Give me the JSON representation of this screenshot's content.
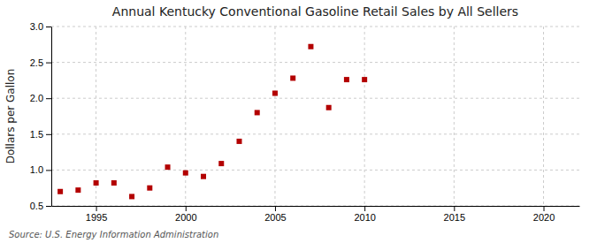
{
  "chart_data": {
    "type": "scatter",
    "title": "Annual Kentucky Conventional Gasoline Retail Sales by All Sellers",
    "ylabel": "Dollars per Gallon",
    "source": "Source: U.S. Energy Information Administration",
    "x": [
      1993,
      1994,
      1995,
      1996,
      1997,
      1998,
      1999,
      2000,
      2001,
      2002,
      2003,
      2004,
      2005,
      2006,
      2007,
      2008,
      2009,
      2010
    ],
    "values": [
      0.7,
      0.72,
      0.82,
      0.82,
      0.63,
      0.75,
      1.04,
      0.96,
      0.91,
      1.09,
      1.4,
      1.8,
      2.07,
      2.28,
      2.72,
      1.87,
      2.26,
      2.26
    ],
    "color": "#b30000",
    "marker": "square",
    "xlim": [
      1992.5,
      2022
    ],
    "ylim": [
      0.5,
      3.0
    ],
    "xticks": [
      1995,
      2000,
      2005,
      2010,
      2015,
      2020
    ],
    "yticks": [
      0.5,
      {
        "value": 1.0,
        "label": "1.0"
      },
      1.5,
      {
        "value": 2.0,
        "label": "2.0"
      },
      2.5,
      {
        "value": 3.0,
        "label": "3.0"
      }
    ],
    "grid": true
  }
}
